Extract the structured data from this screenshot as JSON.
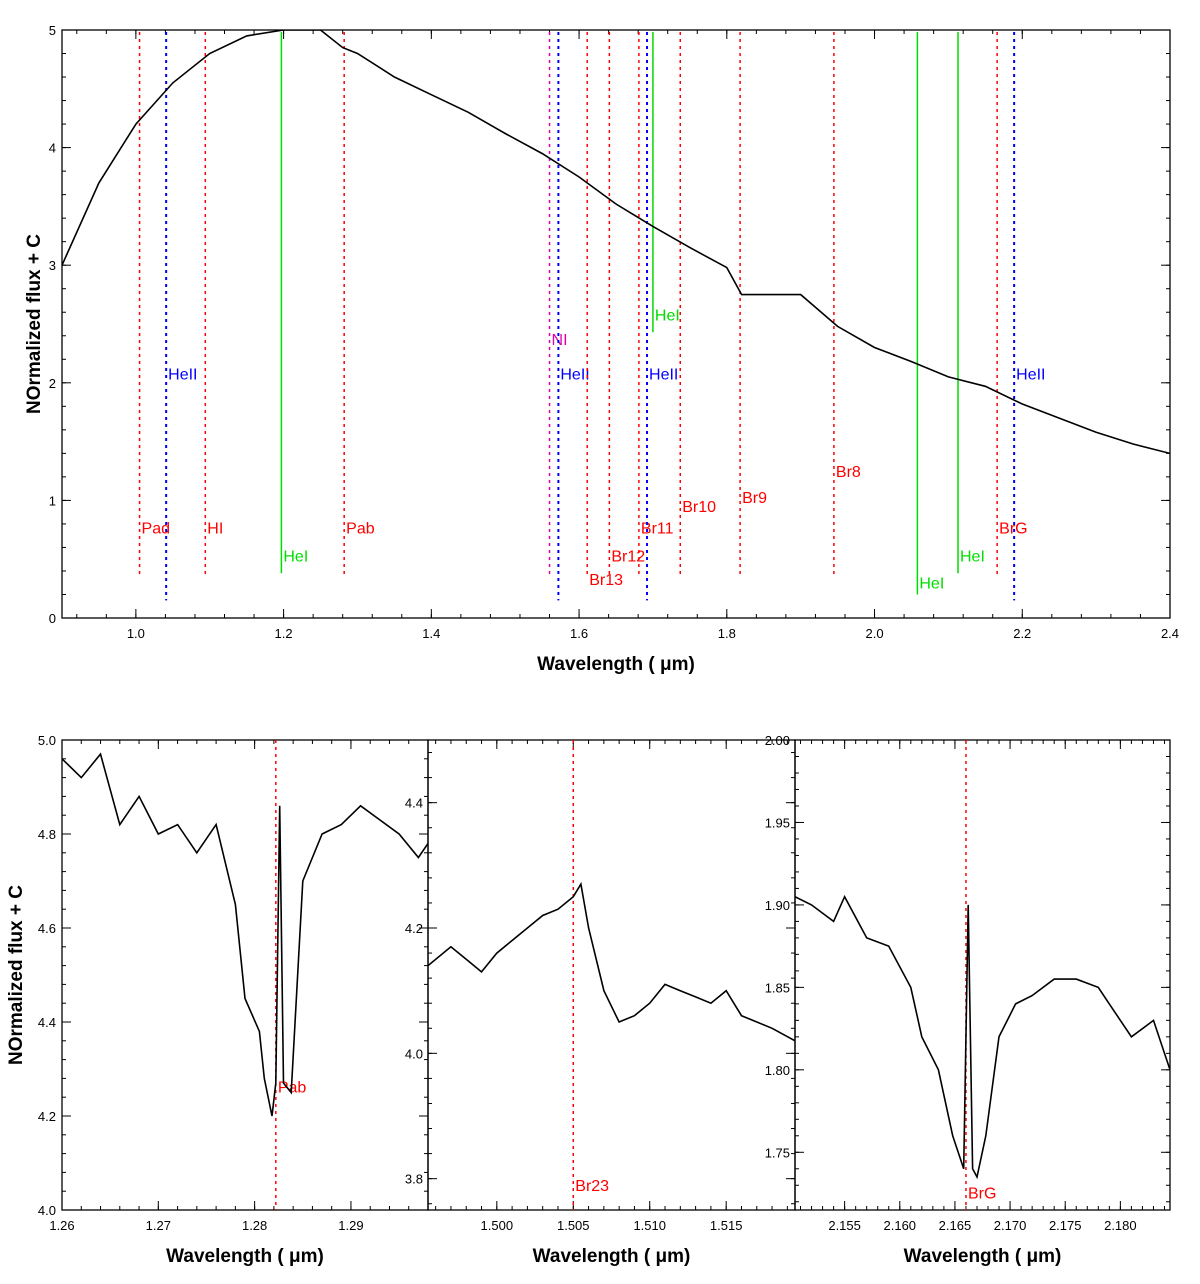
{
  "colors": {
    "H": "#ff0000",
    "HeI": "#00dd00",
    "HeII": "#0000ff",
    "NI": "#dd00aa",
    "spectrum": "#000000"
  },
  "chart_data": [
    {
      "id": "main",
      "type": "line",
      "xlabel": "Wavelength ( μm)",
      "ylabel": "NOrmalized flux + C",
      "xlim": [
        0.9,
        2.4
      ],
      "ylim": [
        0,
        5
      ],
      "xticks": [
        "1.0",
        "1.2",
        "1.4",
        "1.6",
        "1.8",
        "2.0",
        "2.2",
        "2.4"
      ],
      "yticks": [
        "0",
        "1",
        "2",
        "3",
        "4",
        "5"
      ],
      "lines": [
        {
          "label": "Pad",
          "x": 1.005,
          "species": "H",
          "label_y": 0.72
        },
        {
          "label": "HeII",
          "x": 1.041,
          "species": "HeII",
          "label_y": 2.03
        },
        {
          "label": "HI",
          "x": 1.094,
          "species": "H",
          "label_y": 0.72
        },
        {
          "label": "HeI",
          "x": 1.197,
          "species": "HeI",
          "label_y": 0.48
        },
        {
          "label": "Pab",
          "x": 1.282,
          "species": "H",
          "label_y": 0.72
        },
        {
          "label": "NI",
          "x": 1.56,
          "species": "NI",
          "label_y": 2.32
        },
        {
          "label": "HeII",
          "x": 1.572,
          "species": "HeII",
          "label_y": 2.03
        },
        {
          "label": "Br13",
          "x": 1.611,
          "species": "H",
          "label_y": 0.28
        },
        {
          "label": "Br12",
          "x": 1.641,
          "species": "H",
          "label_y": 0.48
        },
        {
          "label": "Br11",
          "x": 1.681,
          "species": "H",
          "label_y": 0.72
        },
        {
          "label": "HeII",
          "x": 1.692,
          "species": "HeII",
          "label_y": 2.03
        },
        {
          "label": "HeI",
          "x": 1.7,
          "species": "HeI",
          "label_y": 2.53
        },
        {
          "label": "Br10",
          "x": 1.737,
          "species": "H",
          "label_y": 0.9
        },
        {
          "label": "Br9",
          "x": 1.818,
          "species": "H",
          "label_y": 0.98
        },
        {
          "label": "Br8",
          "x": 1.945,
          "species": "H",
          "label_y": 1.2
        },
        {
          "label": "HeI",
          "x": 2.058,
          "species": "HeI",
          "label_y": 0.25
        },
        {
          "label": "HeI",
          "x": 2.113,
          "species": "HeI",
          "label_y": 0.48
        },
        {
          "label": "BrG",
          "x": 2.166,
          "species": "H",
          "label_y": 0.72
        },
        {
          "label": "HeII",
          "x": 2.189,
          "species": "HeII",
          "label_y": 2.03
        }
      ],
      "series": [
        {
          "name": "spectrum",
          "x": [
            0.9,
            0.95,
            1.0,
            1.05,
            1.1,
            1.15,
            1.2,
            1.25,
            1.28,
            1.3,
            1.35,
            1.4,
            1.45,
            1.5,
            1.55,
            1.6,
            1.65,
            1.7,
            1.75,
            1.8,
            1.82,
            1.9,
            1.95,
            2.0,
            2.05,
            2.1,
            2.15,
            2.2,
            2.25,
            2.3,
            2.35,
            2.4
          ],
          "y": [
            3.0,
            3.7,
            4.2,
            4.55,
            4.8,
            4.95,
            5.0,
            5.0,
            4.85,
            4.8,
            4.6,
            4.45,
            4.3,
            4.12,
            3.95,
            3.75,
            3.52,
            3.33,
            3.15,
            2.98,
            2.75,
            2.75,
            2.48,
            2.3,
            2.18,
            2.05,
            1.97,
            1.82,
            1.7,
            1.58,
            1.48,
            1.4
          ]
        }
      ]
    },
    {
      "id": "panel-pab",
      "type": "line",
      "xlabel": "Wavelength ( μm)",
      "ylabel": "NOrmalized flux + C",
      "xlim": [
        1.26,
        1.298
      ],
      "ylim": [
        4.0,
        5.0
      ],
      "xticks": [
        "1.26",
        "1.27",
        "1.28",
        "1.29"
      ],
      "yticks": [
        "4.0",
        "4.2",
        "4.4",
        "4.6",
        "4.8",
        "5.0"
      ],
      "lines": [
        {
          "label": "Pab",
          "x": 1.2822,
          "species": "H",
          "label_y": 4.25
        }
      ],
      "series": [
        {
          "name": "spectrum",
          "x": [
            1.26,
            1.262,
            1.264,
            1.266,
            1.268,
            1.27,
            1.272,
            1.274,
            1.276,
            1.278,
            1.279,
            1.2805,
            1.281,
            1.2818,
            1.2822,
            1.2826,
            1.283,
            1.2838,
            1.285,
            1.287,
            1.289,
            1.291,
            1.293,
            1.295,
            1.297,
            1.298
          ],
          "y": [
            4.96,
            4.92,
            4.97,
            4.82,
            4.88,
            4.8,
            4.82,
            4.76,
            4.82,
            4.65,
            4.45,
            4.38,
            4.28,
            4.2,
            4.27,
            4.86,
            4.27,
            4.25,
            4.7,
            4.8,
            4.82,
            4.86,
            4.83,
            4.8,
            4.75,
            4.78
          ]
        }
      ]
    },
    {
      "id": "panel-br23",
      "type": "line",
      "xlabel": "Wavelength ( μm)",
      "ylabel": "",
      "xlim": [
        1.4955,
        1.5195
      ],
      "ylim": [
        3.75,
        4.5
      ],
      "xticks": [
        "1.500",
        "1.505",
        "1.510",
        "1.515"
      ],
      "yticks": [
        "3.8",
        "4.0",
        "4.2",
        "4.4"
      ],
      "lines": [
        {
          "label": "Br23",
          "x": 1.505,
          "species": "H",
          "label_y": 3.78
        }
      ],
      "series": [
        {
          "name": "spectrum",
          "x": [
            1.4955,
            1.497,
            1.498,
            1.499,
            1.5,
            1.501,
            1.502,
            1.503,
            1.504,
            1.505,
            1.5055,
            1.506,
            1.507,
            1.508,
            1.509,
            1.51,
            1.511,
            1.512,
            1.513,
            1.514,
            1.515,
            1.516,
            1.517,
            1.518,
            1.5195
          ],
          "y": [
            4.14,
            4.17,
            4.15,
            4.13,
            4.16,
            4.18,
            4.2,
            4.22,
            4.23,
            4.25,
            4.27,
            4.2,
            4.1,
            4.05,
            4.06,
            4.08,
            4.11,
            4.1,
            4.09,
            4.08,
            4.1,
            4.06,
            4.05,
            4.04,
            4.02
          ]
        }
      ]
    },
    {
      "id": "panel-brg",
      "type": "line",
      "xlabel": "Wavelength ( μm)",
      "ylabel": "",
      "xlim": [
        2.1505,
        2.1845
      ],
      "ylim": [
        1.715,
        2.0
      ],
      "xticks": [
        "2.155",
        "2.160",
        "2.165",
        "2.170",
        "2.175",
        "2.180"
      ],
      "yticks": [
        "1.75",
        "1.80",
        "1.85",
        "1.90",
        "1.95",
        "2.00"
      ],
      "lines": [
        {
          "label": "BrG",
          "x": 2.166,
          "species": "H",
          "label_y": 1.722
        }
      ],
      "series": [
        {
          "name": "spectrum",
          "x": [
            2.1505,
            2.152,
            2.154,
            2.155,
            2.157,
            2.159,
            2.161,
            2.162,
            2.1635,
            2.1648,
            2.1658,
            2.1662,
            2.1666,
            2.167,
            2.1678,
            2.169,
            2.1705,
            2.172,
            2.174,
            2.176,
            2.178,
            2.179,
            2.181,
            2.183,
            2.1845
          ],
          "y": [
            1.905,
            1.9,
            1.89,
            1.905,
            1.88,
            1.875,
            1.85,
            1.82,
            1.8,
            1.76,
            1.74,
            1.9,
            1.74,
            1.735,
            1.76,
            1.82,
            1.84,
            1.845,
            1.855,
            1.855,
            1.85,
            1.84,
            1.82,
            1.83,
            1.8
          ]
        }
      ]
    }
  ]
}
